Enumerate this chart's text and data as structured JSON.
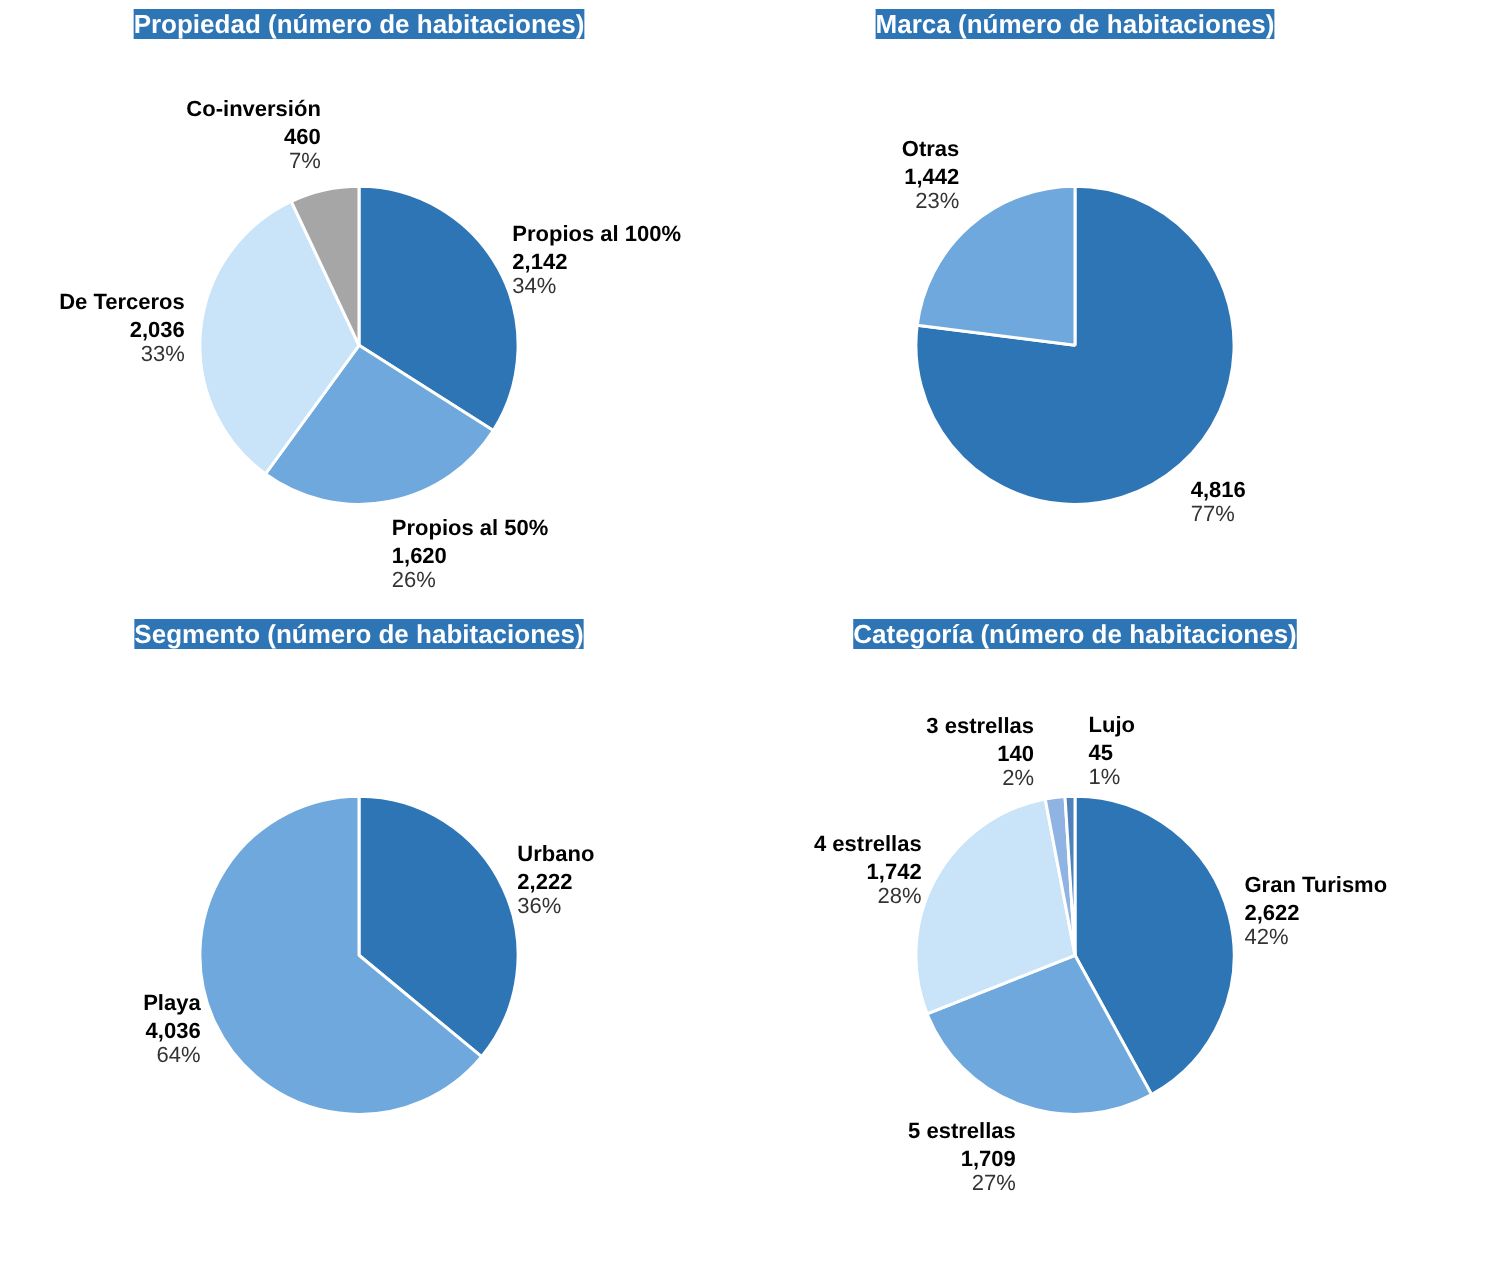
{
  "chart_data": [
    {
      "type": "pie",
      "title": "Propiedad (número de habitaciones)",
      "categories": [
        "Propios al 100%",
        "Propios al 50%",
        "De Terceros",
        "Co-inversión"
      ],
      "values": [
        34,
        26,
        33,
        7
      ],
      "value_labels": [
        "2,142\n34%",
        "1,620\n26%",
        "2,036\n33%",
        "460\n7%"
      ],
      "colors": [
        "#2e75b6",
        "#6fa8dc",
        "#c9e3f8",
        "#a6a6a6"
      ]
    },
    {
      "type": "pie",
      "title": "Marca (número de habitaciones)",
      "categories": [
        null,
        "Otras"
      ],
      "values": [
        77,
        23
      ],
      "value_labels": [
        "4,816\n77%",
        "1,442\n23%"
      ],
      "colors": [
        "#2e75b6",
        "#6fa8dc"
      ]
    },
    {
      "type": "pie",
      "title": "Segmento (número de habitaciones)",
      "categories": [
        "Urbano",
        "Playa"
      ],
      "values": [
        36,
        64
      ],
      "value_labels": [
        "2,222\n36%",
        "4,036\n64%"
      ],
      "colors": [
        "#2e75b6",
        "#6fa8dc"
      ]
    },
    {
      "type": "pie",
      "title": "Categoría (número de habitaciones)",
      "categories": [
        "Gran Turismo",
        "5 estrellas",
        "4 estrellas",
        "3 estrellas",
        "Lujo"
      ],
      "values": [
        42,
        27,
        28,
        2,
        1
      ],
      "value_labels": [
        "2,622\n42%",
        "1,709\n27%",
        "1,742\n28%",
        "140\n2%",
        "45\n1%"
      ],
      "colors": [
        "#2e75b6",
        "#6fa8dc",
        "#c9e3f8",
        "#8fb4e3",
        "#4f81bd"
      ]
    }
  ]
}
